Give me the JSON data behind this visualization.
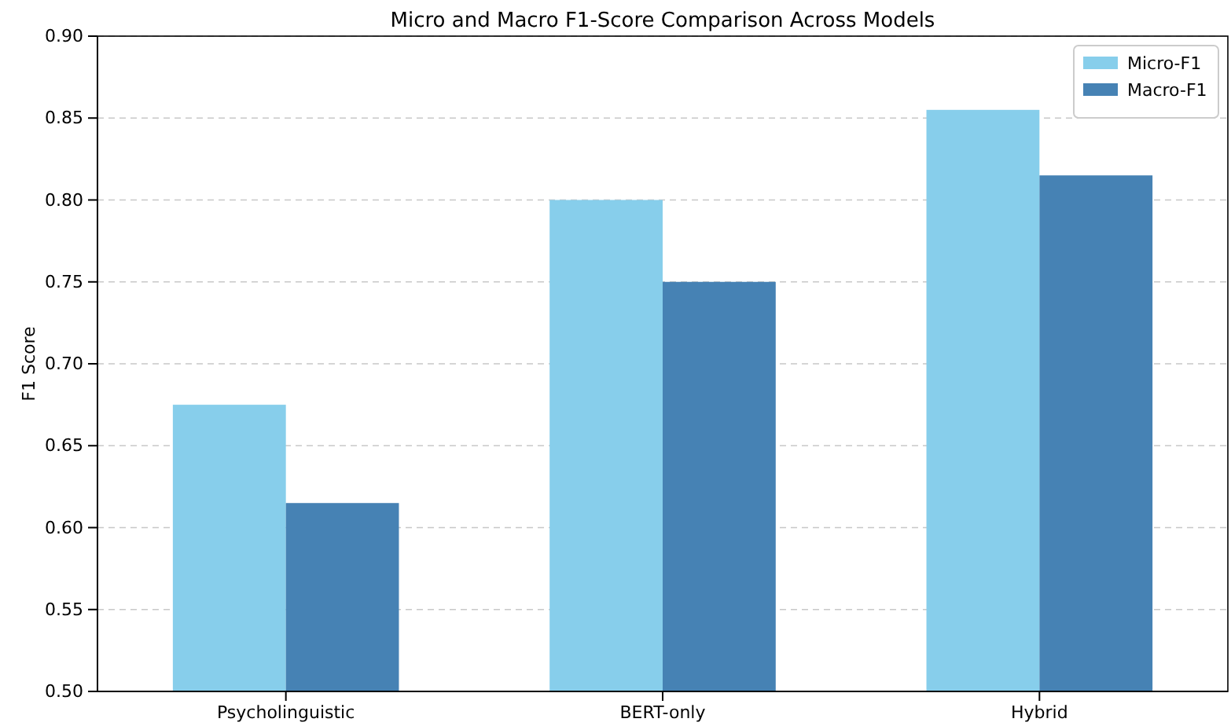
{
  "chart_data": {
    "type": "bar",
    "title": "Micro and Macro F1-Score Comparison Across Models",
    "ylabel": "F1 Score",
    "categories": [
      "Psycholinguistic",
      "BERT-only",
      "Hybrid"
    ],
    "series": [
      {
        "name": "Micro-F1",
        "color": "#87ceeb",
        "values": [
          0.675,
          0.8,
          0.855
        ]
      },
      {
        "name": "Macro-F1",
        "color": "#4682b4",
        "values": [
          0.615,
          0.75,
          0.815
        ]
      }
    ],
    "ylim": [
      0.5,
      0.9
    ],
    "yticks": [
      {
        "value": 0.5,
        "label": "0.50"
      },
      {
        "value": 0.55,
        "label": "0.55"
      },
      {
        "value": 0.6,
        "label": "0.60"
      },
      {
        "value": 0.65,
        "label": "0.65"
      },
      {
        "value": 0.7,
        "label": "0.70"
      },
      {
        "value": 0.75,
        "label": "0.75"
      },
      {
        "value": 0.8,
        "label": "0.80"
      },
      {
        "value": 0.85,
        "label": "0.85"
      },
      {
        "value": 0.9,
        "label": "0.90"
      }
    ],
    "grid": "y",
    "legend": "top right"
  }
}
